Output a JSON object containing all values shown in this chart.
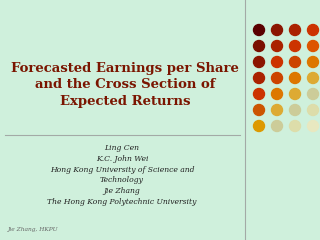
{
  "title_line1": "Forecasted Earnings per Share",
  "title_line2": "and the Cross Section of",
  "title_line3": "Expected Returns",
  "title_color": "#7a1500",
  "bg_color": "#cff0dc",
  "authors_line1": "Ling Cen",
  "authors_line2": "K.C. John Wei",
  "authors_line3": "Hong Kong University of Science and",
  "authors_line4": "Technology",
  "authors_line5": "Jie Zhang",
  "authors_line6": "The Hong Kong Polytechnic University",
  "author_color": "#222222",
  "footer_text": "Jie Zhang, HKPU",
  "footer_color": "#666666",
  "divider_h_color": "#999999",
  "divider_v_color": "#999999",
  "dot_grid": {
    "rows": 7,
    "cols": 4,
    "colors": [
      [
        "#5a0000",
        "#8b1500",
        "#aa2200",
        "#cc3300"
      ],
      [
        "#7a0f00",
        "#aa2200",
        "#cc3300",
        "#dd5500"
      ],
      [
        "#8b1500",
        "#cc3300",
        "#cc4400",
        "#dd7700"
      ],
      [
        "#aa2200",
        "#cc4400",
        "#dd7700",
        "#ddaa33"
      ],
      [
        "#cc3300",
        "#dd7700",
        "#ddaa33",
        "#cccc99"
      ],
      [
        "#cc5500",
        "#ddaa33",
        "#cccc99",
        "#ddddaa"
      ],
      [
        "#dd9900",
        "#cccc99",
        "#ddddaa",
        "#e8e8c0"
      ]
    ]
  }
}
